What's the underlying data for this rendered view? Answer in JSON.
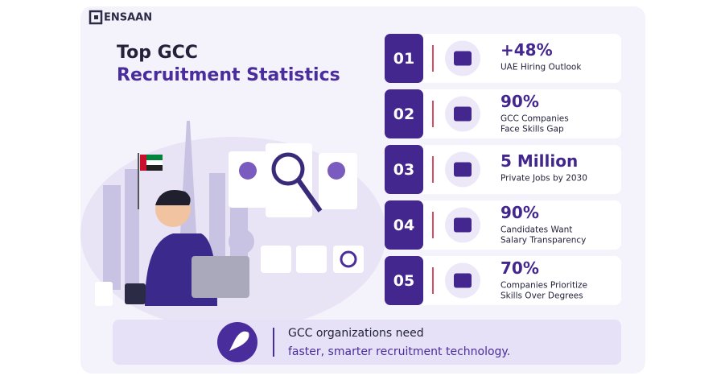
{
  "brand": "ENSAAN",
  "title": {
    "line1": "Top GCC",
    "line2": "Recruitment Statistics"
  },
  "stats": [
    {
      "number": "01",
      "value": "+48%",
      "label": [
        "UAE Hiring Outlook"
      ]
    },
    {
      "number": "02",
      "value": "90%",
      "label": [
        "GCC Companies",
        "Face Skills Gap"
      ]
    },
    {
      "number": "03",
      "value": "5 Million",
      "label": [
        "Private Jobs by 2030"
      ]
    },
    {
      "number": "04",
      "value": "90%",
      "label": [
        "Candidates Want",
        "Salary Transparency"
      ]
    },
    {
      "number": "05",
      "value": "70%",
      "label": [
        "Companies Prioritize",
        "Skills Over Degrees"
      ]
    }
  ],
  "footer": {
    "line1": "GCC organizations need",
    "line2": "faster, smarter recruitment technology."
  }
}
